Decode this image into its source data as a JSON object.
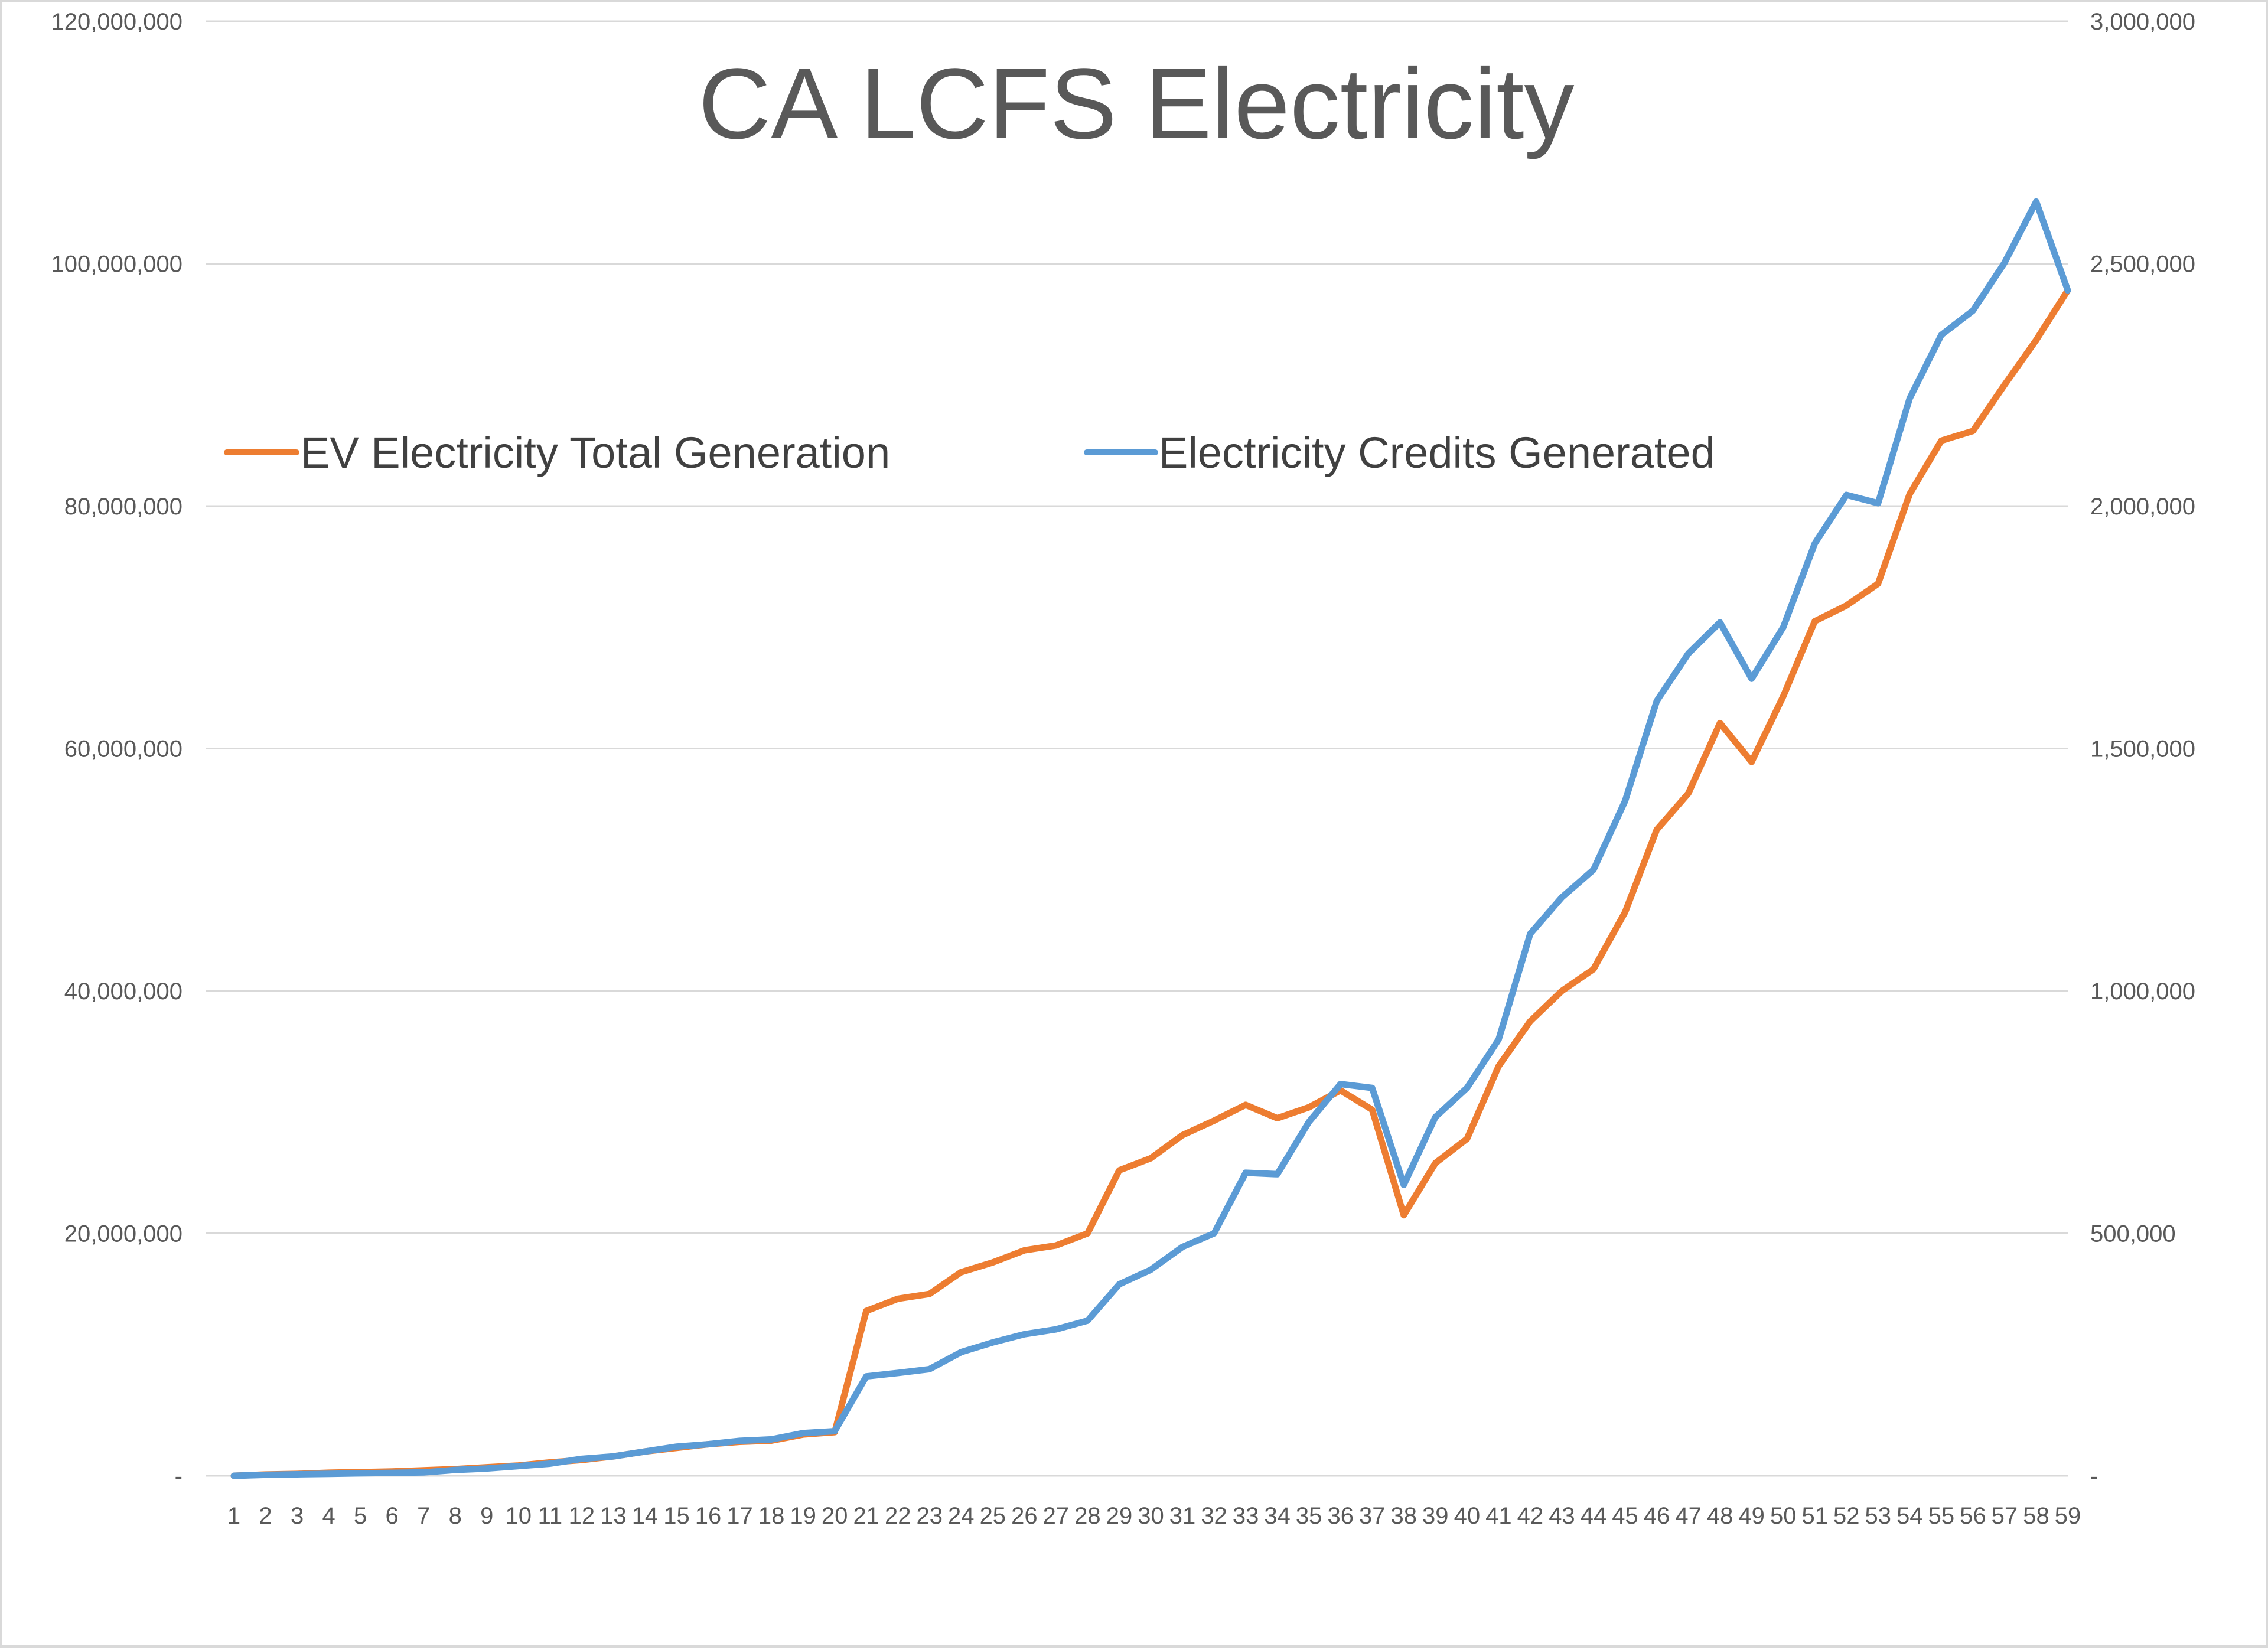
{
  "chart_data": {
    "type": "line",
    "title": "CA LCFS Electricity",
    "xlabel": "",
    "ylabel": "",
    "y2label": "",
    "legend_position": "upper-left",
    "x": [
      1,
      2,
      3,
      4,
      5,
      6,
      7,
      8,
      9,
      10,
      11,
      12,
      13,
      14,
      15,
      16,
      17,
      18,
      19,
      20,
      21,
      22,
      23,
      24,
      25,
      26,
      27,
      28,
      29,
      30,
      31,
      32,
      33,
      34,
      35,
      36,
      37,
      38,
      39,
      40,
      41,
      42,
      43,
      44,
      45,
      46,
      47,
      48,
      49,
      50,
      51,
      52,
      53,
      54,
      55,
      56,
      57,
      58,
      59
    ],
    "ylim": [
      0,
      120000000
    ],
    "y2lim": [
      0,
      3000000
    ],
    "y_ticks": [
      0,
      20000000,
      40000000,
      60000000,
      80000000,
      100000000,
      120000000
    ],
    "y_tick_labels": [
      "-",
      "20,000,000",
      "40,000,000",
      "60,000,000",
      "80,000,000",
      "100,000,000",
      "120,000,000"
    ],
    "y2_ticks": [
      0,
      500000,
      1000000,
      1500000,
      2000000,
      2500000,
      3000000
    ],
    "y2_tick_labels": [
      "-",
      "500,000",
      "1,000,000",
      "1,500,000",
      "2,000,000",
      "2,500,000",
      "3,000,000"
    ],
    "series": [
      {
        "name": "EV Electricity Total Generation",
        "axis": "left",
        "color": "#ed7d31",
        "values": [
          0,
          100000,
          150000,
          250000,
          300000,
          350000,
          450000,
          550000,
          700000,
          850000,
          1100000,
          1300000,
          1600000,
          2000000,
          2300000,
          2600000,
          2800000,
          2900000,
          3400000,
          3600000,
          13600000,
          14600000,
          15000000,
          16800000,
          17600000,
          18600000,
          19000000,
          20000000,
          25200000,
          26200000,
          28100000,
          29300000,
          30600000,
          29500000,
          30400000,
          31800000,
          30200000,
          21500000,
          25800000,
          27800000,
          33800000,
          37500000,
          40000000,
          41800000,
          46500000,
          53300000,
          56300000,
          62100000,
          58900000,
          64300000,
          70500000,
          71800000,
          73600000,
          81000000,
          85400000,
          86200000,
          90000000,
          93700000,
          97800000
        ]
      },
      {
        "name": "Electricity Credits Generated",
        "axis": "right",
        "color": "#5b9bd5",
        "values": [
          0,
          2000,
          3000,
          4000,
          5000,
          6000,
          7000,
          12000,
          15000,
          20000,
          25000,
          35000,
          40000,
          50000,
          60000,
          65000,
          72000,
          75000,
          88000,
          92000,
          205000,
          212000,
          220000,
          255000,
          275000,
          292000,
          302000,
          320000,
          395000,
          425000,
          472000,
          500000,
          625000,
          622000,
          730000,
          808000,
          800000,
          600000,
          740000,
          800000,
          900000,
          1118000,
          1193000,
          1250000,
          1392000,
          1598000,
          1696000,
          1760000,
          1644000,
          1750000,
          1923000,
          2023000,
          2006000,
          2222000,
          2353000,
          2403000,
          2502000,
          2628000,
          2445000
        ]
      }
    ]
  }
}
